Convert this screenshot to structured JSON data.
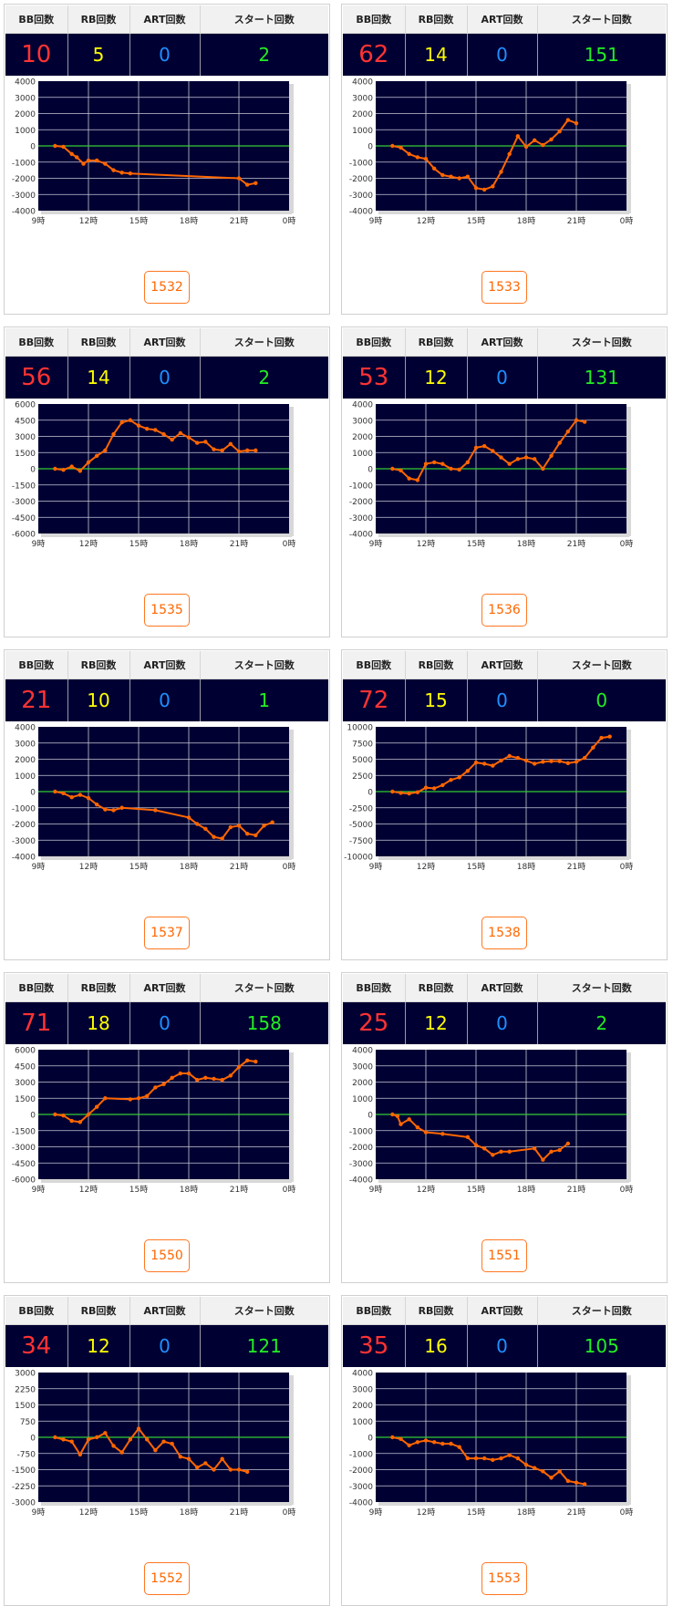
{
  "headers": {
    "bb": "BB回数",
    "rb": "RB回数",
    "art": "ART回数",
    "start": "スタート回数"
  },
  "x_ticks": [
    "9時",
    "12時",
    "15時",
    "18時",
    "21時",
    "0時"
  ],
  "colors": {
    "bb": "#ff3333",
    "rb": "#ffff00",
    "art": "#1e90ff",
    "start": "#22ee22",
    "line": "#ff6600",
    "zero": "#33cc33",
    "plot_bg": "#000033",
    "button": "#ff6600"
  },
  "units": [
    {
      "id": "1532",
      "bb": "10",
      "rb": "5",
      "art": "0",
      "start": "2"
    },
    {
      "id": "1533",
      "bb": "62",
      "rb": "14",
      "art": "0",
      "start": "151"
    },
    {
      "id": "1535",
      "bb": "56",
      "rb": "14",
      "art": "0",
      "start": "2"
    },
    {
      "id": "1536",
      "bb": "53",
      "rb": "12",
      "art": "0",
      "start": "131"
    },
    {
      "id": "1537",
      "bb": "21",
      "rb": "10",
      "art": "0",
      "start": "1"
    },
    {
      "id": "1538",
      "bb": "72",
      "rb": "15",
      "art": "0",
      "start": "0"
    },
    {
      "id": "1550",
      "bb": "71",
      "rb": "18",
      "art": "0",
      "start": "158"
    },
    {
      "id": "1551",
      "bb": "25",
      "rb": "12",
      "art": "0",
      "start": "2"
    },
    {
      "id": "1552",
      "bb": "34",
      "rb": "12",
      "art": "0",
      "start": "121"
    },
    {
      "id": "1553",
      "bb": "35",
      "rb": "16",
      "art": "0",
      "start": "105"
    }
  ],
  "chart_data": [
    {
      "type": "line",
      "ylim": [
        -4000,
        4000
      ],
      "yticks": [
        "4000",
        "3000",
        "2000",
        "1000",
        "0",
        "-1000",
        "-2000",
        "-3000",
        "-4000"
      ],
      "x": [
        10,
        10.5,
        11,
        11.3,
        11.7,
        12,
        12.5,
        13,
        13.5,
        14,
        14.5,
        21,
        21.5,
        22
      ],
      "y": [
        0,
        -50,
        -500,
        -700,
        -1100,
        -900,
        -900,
        -1100,
        -1500,
        -1650,
        -1700,
        -2000,
        -2400,
        -2300
      ]
    },
    {
      "type": "line",
      "ylim": [
        -4000,
        4000
      ],
      "yticks": [
        "4000",
        "3000",
        "2000",
        "1000",
        "0",
        "-1000",
        "-2000",
        "-3000",
        "-4000"
      ],
      "x": [
        10,
        10.5,
        11,
        11.5,
        12,
        12.5,
        13,
        13.5,
        14,
        14.5,
        15,
        15.5,
        16,
        16.5,
        17,
        17.5,
        18,
        18.5,
        19,
        19.5,
        20,
        20.5,
        21
      ],
      "y": [
        0,
        -100,
        -500,
        -700,
        -800,
        -1400,
        -1800,
        -1900,
        -2000,
        -1900,
        -2600,
        -2700,
        -2500,
        -1600,
        -500,
        600,
        -50,
        350,
        50,
        400,
        900,
        1600,
        1400
      ]
    },
    {
      "type": "line",
      "ylim": [
        -6000,
        6000
      ],
      "yticks": [
        "6000",
        "4500",
        "3000",
        "1500",
        "0",
        "-1500",
        "-3000",
        "-4500",
        "-6000"
      ],
      "x": [
        10,
        10.5,
        11,
        11.5,
        12,
        12.5,
        13,
        13.5,
        14,
        14.5,
        15,
        15.5,
        16,
        16.5,
        17,
        17.5,
        18,
        18.5,
        19,
        19.5,
        20,
        20.5,
        21,
        21.5,
        22
      ],
      "y": [
        0,
        -100,
        200,
        -200,
        600,
        1200,
        1700,
        3200,
        4300,
        4500,
        4000,
        3700,
        3600,
        3200,
        2700,
        3300,
        2900,
        2400,
        2500,
        1800,
        1700,
        2300,
        1600,
        1700,
        1700
      ]
    },
    {
      "type": "line",
      "ylim": [
        -4000,
        4000
      ],
      "yticks": [
        "4000",
        "3000",
        "2000",
        "1000",
        "0",
        "-1000",
        "-2000",
        "-3000",
        "-4000"
      ],
      "x": [
        10,
        10.5,
        11,
        11.5,
        12,
        12.5,
        13,
        13.5,
        14,
        14.5,
        15,
        15.5,
        16,
        16.5,
        17,
        17.5,
        18,
        18.5,
        19,
        19.5,
        20,
        20.5,
        21,
        21.5
      ],
      "y": [
        0,
        -100,
        -600,
        -700,
        300,
        400,
        300,
        0,
        -50,
        400,
        1300,
        1400,
        1100,
        700,
        300,
        600,
        700,
        600,
        0,
        800,
        1600,
        2300,
        3000,
        2900
      ]
    },
    {
      "type": "line",
      "ylim": [
        -4000,
        4000
      ],
      "yticks": [
        "4000",
        "3000",
        "2000",
        "1000",
        "0",
        "-1000",
        "-2000",
        "-3000",
        "-4000"
      ],
      "x": [
        10,
        10.5,
        11,
        11.5,
        12,
        12.5,
        13,
        13.5,
        14,
        16,
        18,
        18.5,
        19,
        19.5,
        20,
        20.5,
        21,
        21.5,
        22,
        22.5,
        23
      ],
      "y": [
        0,
        -100,
        -350,
        -200,
        -400,
        -800,
        -1100,
        -1150,
        -1000,
        -1150,
        -1600,
        -2000,
        -2300,
        -2800,
        -2900,
        -2200,
        -2100,
        -2600,
        -2700,
        -2100,
        -1900
      ]
    },
    {
      "type": "line",
      "ylim": [
        -10000,
        10000
      ],
      "yticks": [
        "10000",
        "7500",
        "5000",
        "2500",
        "0",
        "-2500",
        "-5000",
        "-7500",
        "-10000"
      ],
      "x": [
        10,
        10.5,
        11,
        11.5,
        12,
        12.5,
        13,
        13.5,
        14,
        14.5,
        15,
        15.5,
        16,
        16.5,
        17,
        17.5,
        18,
        18.5,
        19,
        19.5,
        20,
        20.5,
        21,
        21.5,
        22,
        22.5,
        23
      ],
      "y": [
        0,
        -200,
        -300,
        -100,
        600,
        500,
        1000,
        1800,
        2200,
        3200,
        4500,
        4300,
        4000,
        4800,
        5500,
        5200,
        4800,
        4300,
        4600,
        4700,
        4700,
        4400,
        4600,
        5200,
        6800,
        8300,
        8500
      ]
    },
    {
      "type": "line",
      "ylim": [
        -6000,
        6000
      ],
      "yticks": [
        "6000",
        "4500",
        "3000",
        "1500",
        "0",
        "-1500",
        "-3000",
        "-4500",
        "-6000"
      ],
      "x": [
        10,
        10.5,
        11,
        11.5,
        12,
        12.5,
        13,
        14.5,
        15,
        15.5,
        16,
        16.5,
        17,
        17.5,
        18,
        18.5,
        19,
        19.5,
        20,
        20.5,
        21,
        21.5,
        22
      ],
      "y": [
        0,
        -100,
        -600,
        -700,
        0,
        700,
        1500,
        1400,
        1500,
        1700,
        2500,
        2800,
        3400,
        3800,
        3800,
        3200,
        3400,
        3300,
        3200,
        3600,
        4400,
        5000,
        4900
      ]
    },
    {
      "type": "line",
      "ylim": [
        -4000,
        4000
      ],
      "yticks": [
        "4000",
        "3000",
        "2000",
        "1000",
        "0",
        "-1000",
        "-2000",
        "-3000",
        "-4000"
      ],
      "x": [
        10,
        10.3,
        10.5,
        11,
        11.5,
        12,
        13,
        14.5,
        15,
        15.5,
        16,
        16.5,
        17,
        18.5,
        19,
        19.5,
        20,
        20.5
      ],
      "y": [
        0,
        -100,
        -600,
        -300,
        -800,
        -1100,
        -1200,
        -1400,
        -1900,
        -2100,
        -2500,
        -2300,
        -2300,
        -2100,
        -2800,
        -2300,
        -2200,
        -1800
      ]
    },
    {
      "type": "line",
      "ylim": [
        -3000,
        3000
      ],
      "yticks": [
        "3000",
        "2250",
        "1500",
        "750",
        "0",
        "-750",
        "-1500",
        "-2250",
        "-3000"
      ],
      "x": [
        10,
        10.5,
        11,
        11.5,
        12,
        12.5,
        13,
        13.5,
        14,
        14.5,
        15,
        15.5,
        16,
        16.5,
        17,
        17.5,
        18,
        18.5,
        19,
        19.5,
        20,
        20.5,
        21,
        21.5
      ],
      "y": [
        0,
        -100,
        -200,
        -800,
        -100,
        0,
        200,
        -400,
        -700,
        -100,
        400,
        -100,
        -600,
        -200,
        -300,
        -900,
        -1000,
        -1400,
        -1200,
        -1500,
        -1000,
        -1500,
        -1500,
        -1600
      ]
    },
    {
      "type": "line",
      "ylim": [
        -4000,
        4000
      ],
      "yticks": [
        "4000",
        "3000",
        "2000",
        "1000",
        "0",
        "-1000",
        "-2000",
        "-3000",
        "-4000"
      ],
      "x": [
        10,
        10.5,
        11,
        11.5,
        12,
        12.5,
        13,
        13.5,
        14,
        14.5,
        15,
        15.5,
        16,
        16.5,
        17,
        17.5,
        18,
        18.5,
        19,
        19.5,
        20,
        20.5,
        21,
        21.5
      ],
      "y": [
        0,
        -100,
        -500,
        -300,
        -200,
        -300,
        -400,
        -400,
        -600,
        -1300,
        -1300,
        -1300,
        -1400,
        -1300,
        -1100,
        -1300,
        -1700,
        -1900,
        -2100,
        -2500,
        -2100,
        -2700,
        -2800,
        -2900
      ]
    }
  ]
}
